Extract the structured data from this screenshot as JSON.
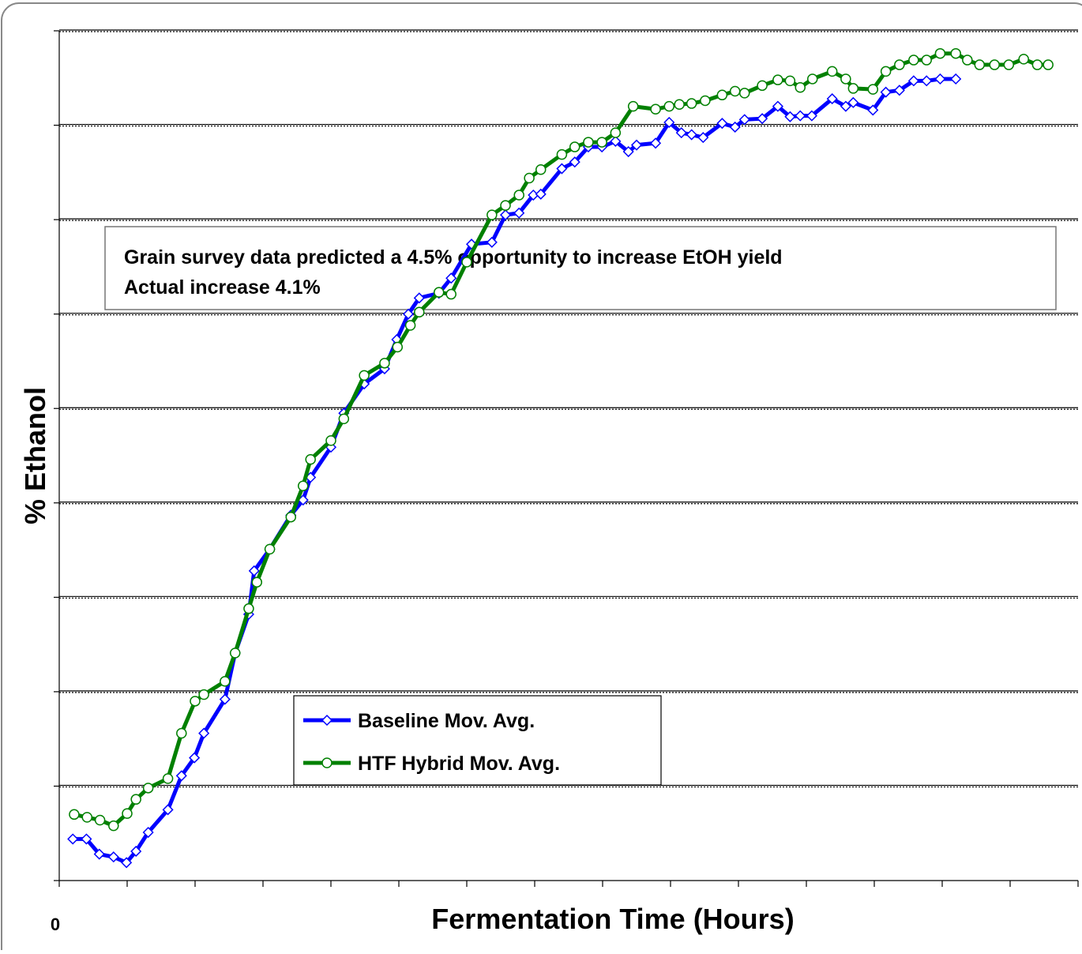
{
  "chart_data": {
    "type": "line",
    "y_label": "% Ethanol",
    "x_label": "Fermentation Time (Hours)",
    "x_origin_label": "0",
    "annotation": [
      "Grain survey data predicted a 4.5% opportunity to increase EtOH yield",
      "Actual increase 4.1%"
    ],
    "xlim": [
      0,
      15
    ],
    "xticks": [
      0,
      1,
      2,
      3,
      4,
      5,
      6,
      7,
      8,
      9,
      10,
      11,
      12,
      13,
      14,
      15
    ],
    "ylim": [
      0,
      9
    ],
    "yticks": [
      0,
      1,
      2,
      3,
      4,
      5,
      6,
      7,
      8,
      9
    ],
    "grid": true,
    "series": [
      {
        "name": "Baseline Mov. Avg.",
        "color": "#0000ff",
        "marker": "diamond",
        "x": [
          0.2,
          0.4,
          0.59,
          0.8,
          0.99,
          1.13,
          1.31,
          1.6,
          1.8,
          1.99,
          2.13,
          2.44,
          2.59,
          2.79,
          2.87,
          3.1,
          3.41,
          3.59,
          3.7,
          4.0,
          4.19,
          4.49,
          4.79,
          4.97,
          5.14,
          5.3,
          5.59,
          5.77,
          6.07,
          6.37,
          6.57,
          6.77,
          6.98,
          7.09,
          7.4,
          7.59,
          7.79,
          7.99,
          8.19,
          8.38,
          8.5,
          8.78,
          8.98,
          9.16,
          9.31,
          9.48,
          9.76,
          9.95,
          10.09,
          10.35,
          10.58,
          10.76,
          10.91,
          11.08,
          11.38,
          11.58,
          11.69,
          11.98,
          12.17,
          12.37,
          12.58,
          12.77,
          12.97,
          13.2
        ],
        "values": [
          0.44,
          0.44,
          0.28,
          0.25,
          0.19,
          0.31,
          0.51,
          0.75,
          1.11,
          1.3,
          1.56,
          1.92,
          2.41,
          2.82,
          3.28,
          3.51,
          3.87,
          4.03,
          4.27,
          4.59,
          4.95,
          5.26,
          5.42,
          5.73,
          6.0,
          6.17,
          6.22,
          6.38,
          6.74,
          6.76,
          7.05,
          7.07,
          7.26,
          7.27,
          7.54,
          7.61,
          7.77,
          7.77,
          7.83,
          7.72,
          7.79,
          7.81,
          8.03,
          7.92,
          7.9,
          7.87,
          8.02,
          7.98,
          8.06,
          8.07,
          8.2,
          8.09,
          8.1,
          8.1,
          8.28,
          8.2,
          8.24,
          8.16,
          8.35,
          8.37,
          8.47,
          8.47,
          8.49,
          8.49
        ]
      },
      {
        "name": "HTF Hybrid Mov. Avg.",
        "color": "#008000",
        "marker": "circle",
        "x": [
          0.22,
          0.41,
          0.6,
          0.8,
          1.0,
          1.13,
          1.31,
          1.6,
          1.8,
          2.0,
          2.13,
          2.44,
          2.59,
          2.79,
          2.91,
          3.1,
          3.41,
          3.59,
          3.7,
          4.0,
          4.19,
          4.49,
          4.79,
          4.98,
          5.17,
          5.3,
          5.59,
          5.77,
          6.0,
          6.37,
          6.57,
          6.77,
          6.92,
          7.09,
          7.4,
          7.59,
          7.79,
          7.99,
          8.19,
          8.45,
          8.78,
          8.98,
          9.13,
          9.31,
          9.51,
          9.76,
          9.95,
          10.09,
          10.35,
          10.58,
          10.76,
          10.91,
          11.09,
          11.38,
          11.58,
          11.69,
          11.98,
          12.17,
          12.37,
          12.58,
          12.77,
          12.97,
          13.2,
          13.37,
          13.55,
          13.77,
          13.98,
          14.2,
          14.4,
          14.56
        ],
        "values": [
          0.7,
          0.67,
          0.64,
          0.58,
          0.71,
          0.86,
          0.98,
          1.08,
          1.56,
          1.9,
          1.97,
          2.11,
          2.41,
          2.88,
          3.16,
          3.51,
          3.85,
          4.18,
          4.46,
          4.66,
          4.89,
          5.35,
          5.48,
          5.65,
          5.88,
          6.02,
          6.23,
          6.21,
          6.55,
          7.05,
          7.15,
          7.26,
          7.44,
          7.53,
          7.69,
          7.77,
          7.82,
          7.82,
          7.92,
          8.2,
          8.17,
          8.2,
          8.22,
          8.23,
          8.26,
          8.32,
          8.36,
          8.34,
          8.42,
          8.48,
          8.47,
          8.4,
          8.49,
          8.57,
          8.49,
          8.39,
          8.38,
          8.57,
          8.64,
          8.69,
          8.69,
          8.76,
          8.76,
          8.69,
          8.64,
          8.64,
          8.64,
          8.7,
          8.64,
          8.64
        ]
      }
    ]
  }
}
